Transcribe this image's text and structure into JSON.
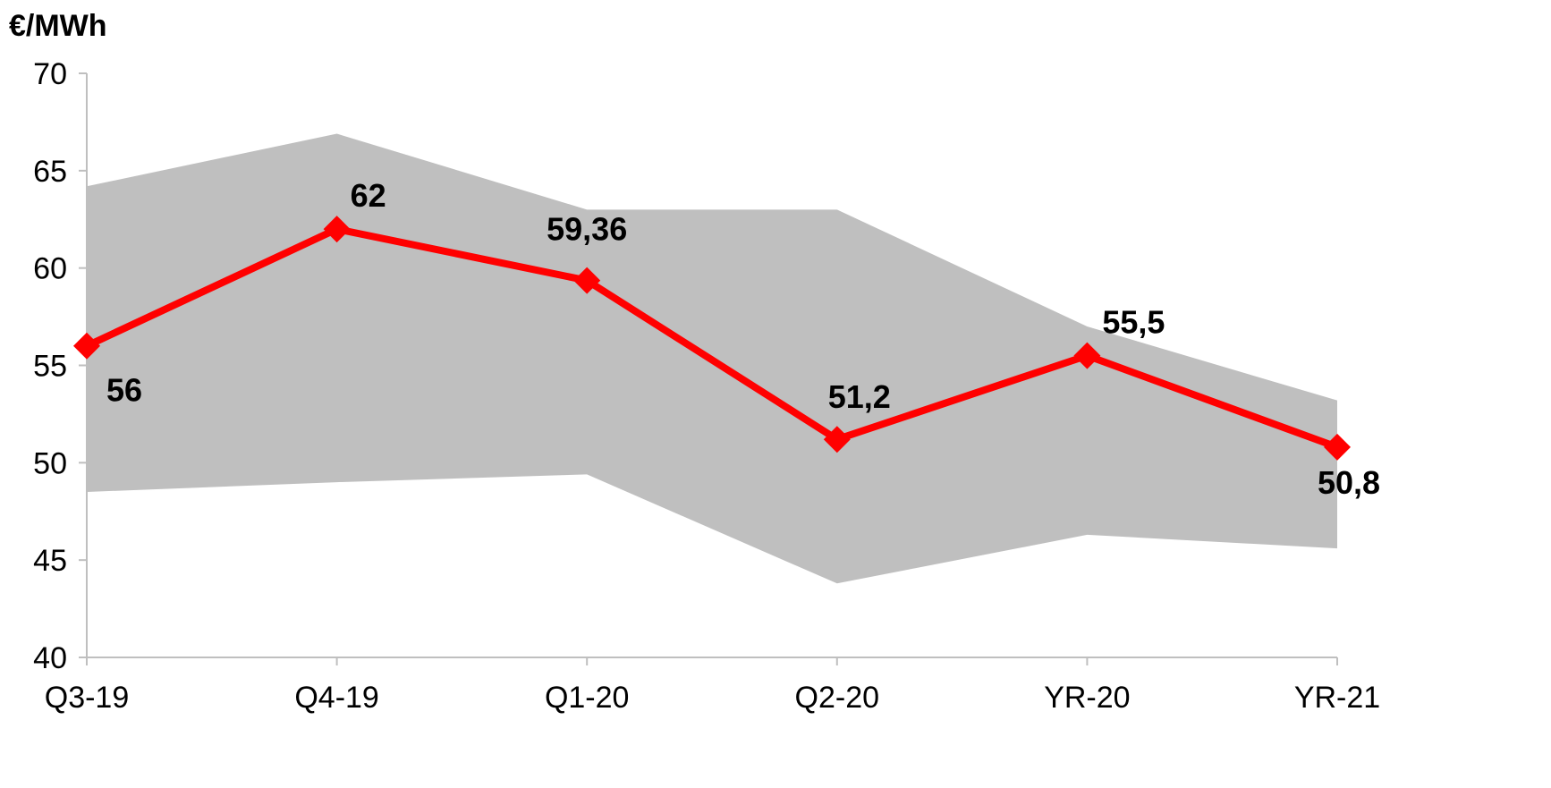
{
  "chart_data": {
    "type": "line",
    "y_unit_label": "€/MWh",
    "categories": [
      "Q3-19",
      "Q4-19",
      "Q1-20",
      "Q2-20",
      "YR-20",
      "YR-21"
    ],
    "ylim": [
      40,
      70
    ],
    "y_ticks": [
      {
        "value": 70,
        "label": "70"
      },
      {
        "value": 65,
        "label": "65"
      },
      {
        "value": 60,
        "label": "60"
      },
      {
        "value": 55,
        "label": "55"
      },
      {
        "value": 50,
        "label": "50"
      },
      {
        "value": 45,
        "label": "45"
      },
      {
        "value": 40,
        "label": "40"
      }
    ],
    "grid": false,
    "band": {
      "upper": [
        64.2,
        66.9,
        63.0,
        63.0,
        57.0,
        53.2
      ],
      "lower": [
        48.5,
        49.0,
        49.4,
        43.8,
        46.3,
        45.6
      ],
      "color": "#bfbfbf"
    },
    "series": [
      {
        "values": [
          56,
          62,
          59.36,
          51.2,
          55.5,
          50.8
        ],
        "labels": [
          "56",
          "62",
          "59,36",
          "51,2",
          "55,5",
          "50,8"
        ],
        "color": "#ff0000"
      }
    ]
  }
}
